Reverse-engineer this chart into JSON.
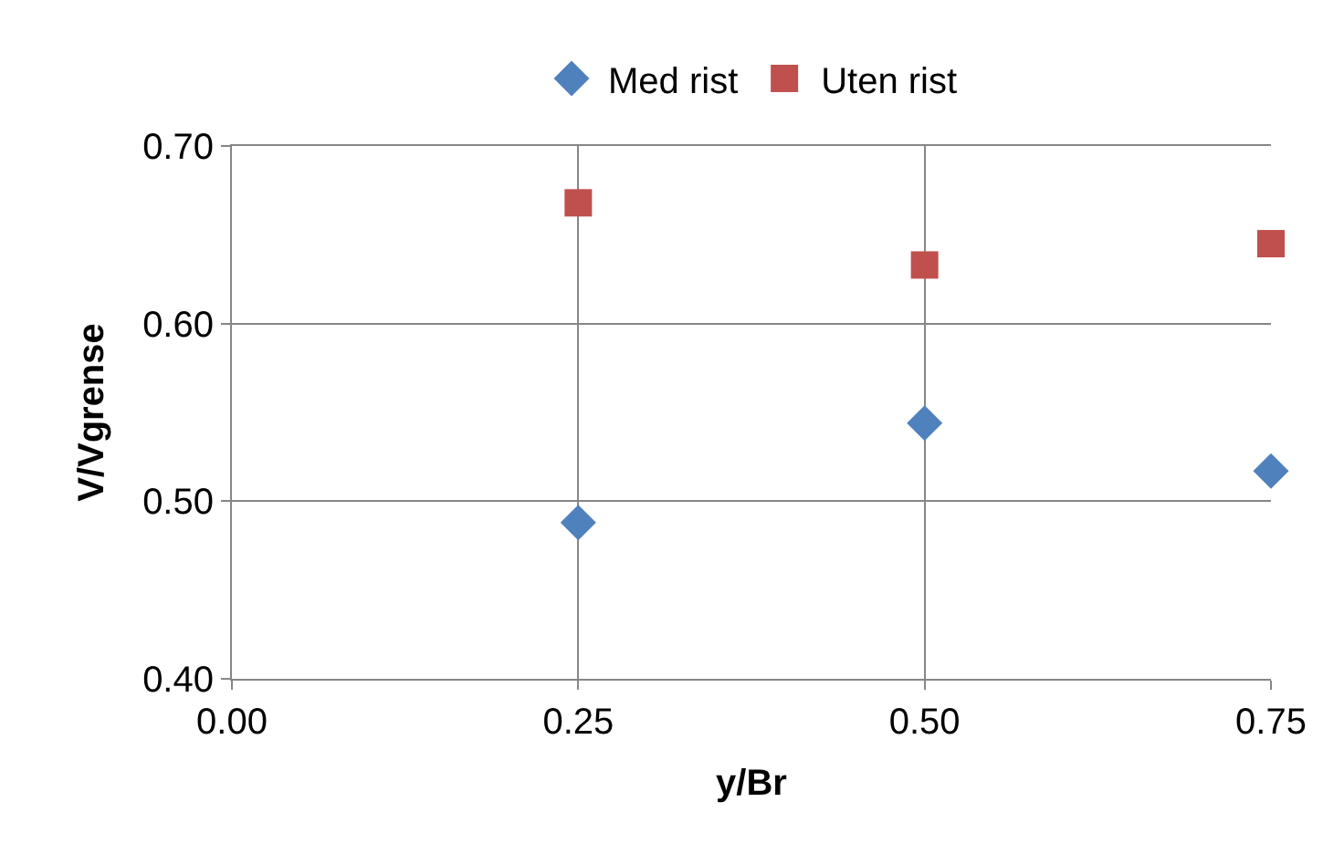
{
  "chart_data": {
    "type": "scatter",
    "xlabel": "y/Br",
    "ylabel": "V/Vgrense",
    "x": [
      0.25,
      0.5,
      0.75
    ],
    "series": [
      {
        "name": "Med rist",
        "color": "#4f81bd",
        "marker": "diamond",
        "values": [
          0.488,
          0.544,
          0.517
        ]
      },
      {
        "name": "Uten rist",
        "color": "#c0504d",
        "marker": "square",
        "values": [
          0.668,
          0.633,
          0.645
        ]
      }
    ],
    "xlim": [
      0,
      0.75
    ],
    "xticks": [
      {
        "value": 0,
        "label": "0.00"
      },
      0.25,
      {
        "value": 0.5,
        "label": "0.50"
      },
      0.75
    ],
    "ylim": [
      0.4,
      0.7
    ],
    "yticks": [
      {
        "value": 0.4,
        "label": "0.40"
      },
      {
        "value": 0.5,
        "label": "0.50"
      },
      {
        "value": 0.6,
        "label": "0.60"
      },
      {
        "value": 0.7,
        "label": "0.70"
      }
    ],
    "grid": true,
    "legend": "top"
  }
}
